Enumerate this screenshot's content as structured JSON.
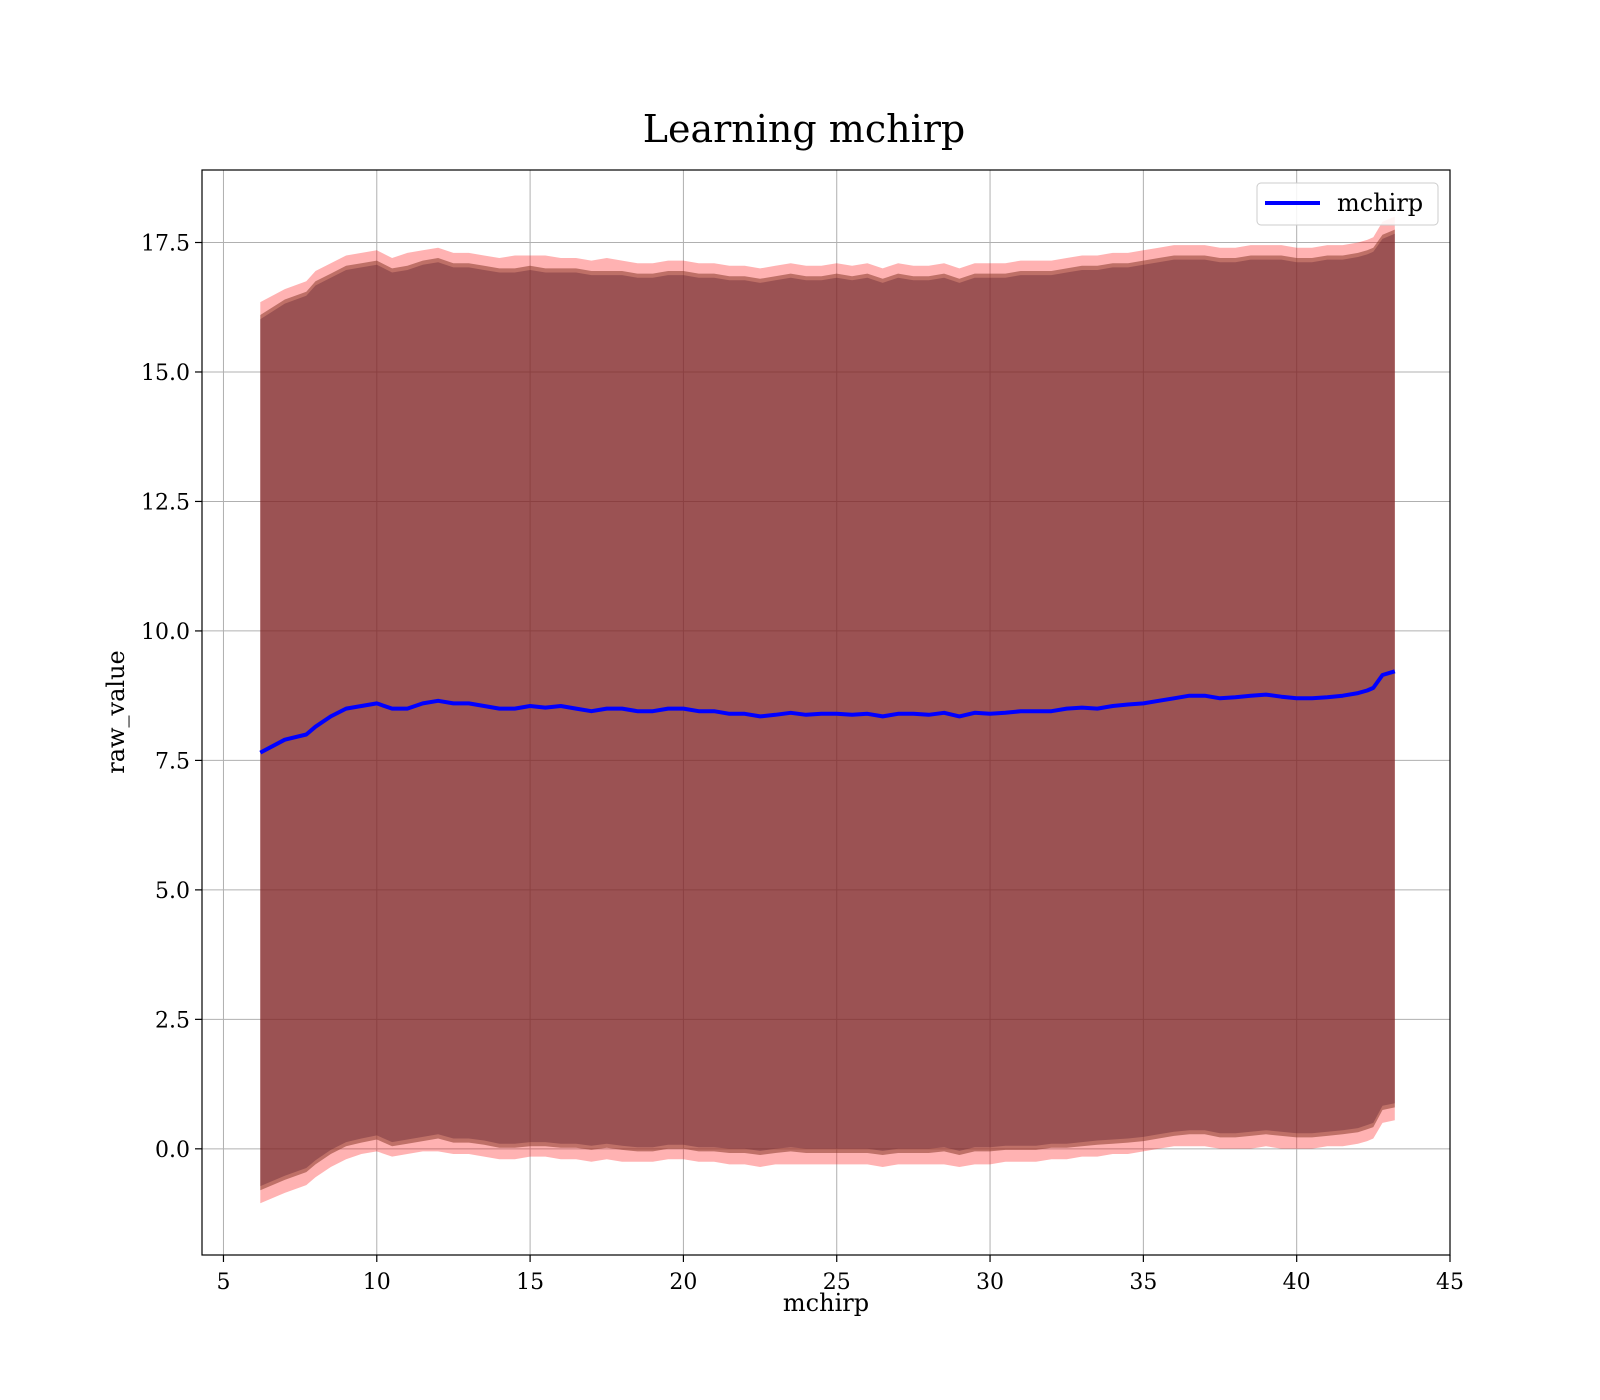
{
  "chart_data": {
    "type": "area",
    "title": "Learning mchirp",
    "xlabel": "mchirp",
    "ylabel": "raw_value",
    "xlim": [
      4.3,
      45
    ],
    "ylim": [
      -2.05,
      18.9
    ],
    "xticks": [
      5,
      10,
      15,
      20,
      25,
      30,
      35,
      40,
      45
    ],
    "yticks": [
      0.0,
      2.5,
      5.0,
      7.5,
      10.0,
      12.5,
      15.0,
      17.5
    ],
    "xtick_labels": [
      "5",
      "10",
      "15",
      "20",
      "25",
      "30",
      "35",
      "40",
      "45"
    ],
    "ytick_labels": [
      "0.0",
      "2.5",
      "5.0",
      "7.5",
      "10.0",
      "12.5",
      "15.0",
      "17.5"
    ],
    "grid": true,
    "legend": {
      "position": "top-right",
      "entries": [
        {
          "label": "mchirp",
          "color": "#0000ff"
        }
      ]
    },
    "colors": {
      "line": "#0000ff",
      "outer_band": "#ff0000",
      "inner_band": "#8a3a2a",
      "core_band": "#5a1a2e"
    },
    "series": [
      {
        "name": "mchirp",
        "x": [
          6.2,
          7.0,
          7.7,
          8.0,
          8.5,
          9.0,
          9.5,
          10.0,
          10.5,
          11.0,
          11.5,
          12.0,
          12.5,
          13.0,
          13.5,
          14.0,
          14.5,
          15.0,
          15.5,
          16.0,
          16.5,
          17.0,
          17.5,
          18.0,
          18.5,
          19.0,
          19.5,
          20.0,
          20.5,
          21.0,
          21.5,
          22.0,
          22.5,
          23.0,
          23.5,
          24.0,
          24.5,
          25.0,
          25.5,
          26.0,
          26.5,
          27.0,
          27.5,
          28.0,
          28.5,
          29.0,
          29.5,
          30.0,
          30.5,
          31.0,
          31.5,
          32.0,
          32.5,
          33.0,
          33.5,
          34.0,
          34.5,
          35.0,
          35.5,
          36.0,
          36.5,
          37.0,
          37.5,
          38.0,
          38.5,
          39.0,
          39.5,
          40.0,
          40.5,
          41.0,
          41.5,
          42.0,
          42.3,
          42.5,
          42.8,
          43.2
        ],
        "y": [
          7.65,
          7.9,
          8.0,
          8.15,
          8.35,
          8.5,
          8.55,
          8.6,
          8.5,
          8.5,
          8.6,
          8.65,
          8.6,
          8.6,
          8.55,
          8.5,
          8.5,
          8.55,
          8.52,
          8.55,
          8.5,
          8.45,
          8.5,
          8.5,
          8.45,
          8.45,
          8.5,
          8.5,
          8.45,
          8.45,
          8.4,
          8.4,
          8.35,
          8.38,
          8.42,
          8.38,
          8.4,
          8.4,
          8.38,
          8.4,
          8.35,
          8.4,
          8.4,
          8.38,
          8.42,
          8.35,
          8.42,
          8.4,
          8.42,
          8.45,
          8.45,
          8.45,
          8.5,
          8.52,
          8.5,
          8.55,
          8.58,
          8.6,
          8.65,
          8.7,
          8.75,
          8.75,
          8.7,
          8.72,
          8.75,
          8.77,
          8.73,
          8.7,
          8.7,
          8.72,
          8.75,
          8.8,
          8.85,
          8.9,
          9.15,
          9.22
        ],
        "outer_upper": [
          16.35,
          16.6,
          16.75,
          16.95,
          17.1,
          17.25,
          17.3,
          17.35,
          17.2,
          17.3,
          17.35,
          17.4,
          17.3,
          17.3,
          17.25,
          17.2,
          17.25,
          17.25,
          17.25,
          17.2,
          17.2,
          17.15,
          17.2,
          17.15,
          17.1,
          17.1,
          17.15,
          17.15,
          17.1,
          17.1,
          17.05,
          17.05,
          17.0,
          17.05,
          17.1,
          17.05,
          17.05,
          17.1,
          17.05,
          17.1,
          17.0,
          17.1,
          17.05,
          17.05,
          17.1,
          17.0,
          17.1,
          17.1,
          17.1,
          17.15,
          17.15,
          17.15,
          17.2,
          17.25,
          17.25,
          17.3,
          17.3,
          17.35,
          17.4,
          17.45,
          17.45,
          17.45,
          17.4,
          17.4,
          17.45,
          17.45,
          17.45,
          17.4,
          17.4,
          17.45,
          17.45,
          17.5,
          17.55,
          17.6,
          17.9,
          18.0
        ],
        "outer_lower": [
          -1.05,
          -0.85,
          -0.7,
          -0.55,
          -0.35,
          -0.2,
          -0.1,
          -0.05,
          -0.15,
          -0.1,
          -0.05,
          -0.05,
          -0.1,
          -0.1,
          -0.15,
          -0.2,
          -0.2,
          -0.15,
          -0.15,
          -0.2,
          -0.2,
          -0.25,
          -0.2,
          -0.25,
          -0.25,
          -0.25,
          -0.2,
          -0.2,
          -0.25,
          -0.25,
          -0.3,
          -0.3,
          -0.35,
          -0.3,
          -0.3,
          -0.3,
          -0.3,
          -0.3,
          -0.3,
          -0.3,
          -0.35,
          -0.3,
          -0.3,
          -0.3,
          -0.3,
          -0.35,
          -0.3,
          -0.3,
          -0.25,
          -0.25,
          -0.25,
          -0.2,
          -0.2,
          -0.15,
          -0.15,
          -0.1,
          -0.1,
          -0.05,
          0.0,
          0.05,
          0.05,
          0.05,
          0.0,
          0.0,
          0.0,
          0.05,
          0.0,
          0.0,
          0.0,
          0.05,
          0.05,
          0.1,
          0.15,
          0.2,
          0.5,
          0.55
        ],
        "inner_upper": [
          16.1,
          16.4,
          16.55,
          16.75,
          16.9,
          17.05,
          17.1,
          17.15,
          17.0,
          17.05,
          17.15,
          17.2,
          17.1,
          17.1,
          17.05,
          17.0,
          17.0,
          17.05,
          17.0,
          17.0,
          17.0,
          16.95,
          16.95,
          16.95,
          16.9,
          16.9,
          16.95,
          16.95,
          16.9,
          16.9,
          16.85,
          16.85,
          16.8,
          16.85,
          16.9,
          16.85,
          16.85,
          16.9,
          16.85,
          16.9,
          16.8,
          16.9,
          16.85,
          16.85,
          16.9,
          16.8,
          16.9,
          16.9,
          16.9,
          16.95,
          16.95,
          16.95,
          17.0,
          17.05,
          17.05,
          17.1,
          17.1,
          17.15,
          17.2,
          17.25,
          17.25,
          17.25,
          17.2,
          17.2,
          17.25,
          17.25,
          17.25,
          17.2,
          17.2,
          17.25,
          17.25,
          17.3,
          17.35,
          17.4,
          17.65,
          17.75
        ],
        "inner_lower": [
          -0.8,
          -0.6,
          -0.45,
          -0.3,
          -0.1,
          0.05,
          0.12,
          0.18,
          0.05,
          0.1,
          0.15,
          0.2,
          0.12,
          0.12,
          0.08,
          0.02,
          0.02,
          0.05,
          0.05,
          0.02,
          0.02,
          -0.02,
          0.02,
          -0.02,
          -0.05,
          -0.05,
          0.0,
          0.0,
          -0.05,
          -0.05,
          -0.08,
          -0.08,
          -0.12,
          -0.08,
          -0.05,
          -0.08,
          -0.08,
          -0.08,
          -0.08,
          -0.08,
          -0.12,
          -0.08,
          -0.08,
          -0.08,
          -0.05,
          -0.12,
          -0.05,
          -0.05,
          -0.02,
          -0.02,
          -0.02,
          0.02,
          0.02,
          0.05,
          0.08,
          0.1,
          0.12,
          0.15,
          0.2,
          0.25,
          0.28,
          0.28,
          0.22,
          0.22,
          0.25,
          0.28,
          0.25,
          0.22,
          0.22,
          0.25,
          0.28,
          0.32,
          0.38,
          0.42,
          0.75,
          0.8
        ]
      }
    ]
  }
}
